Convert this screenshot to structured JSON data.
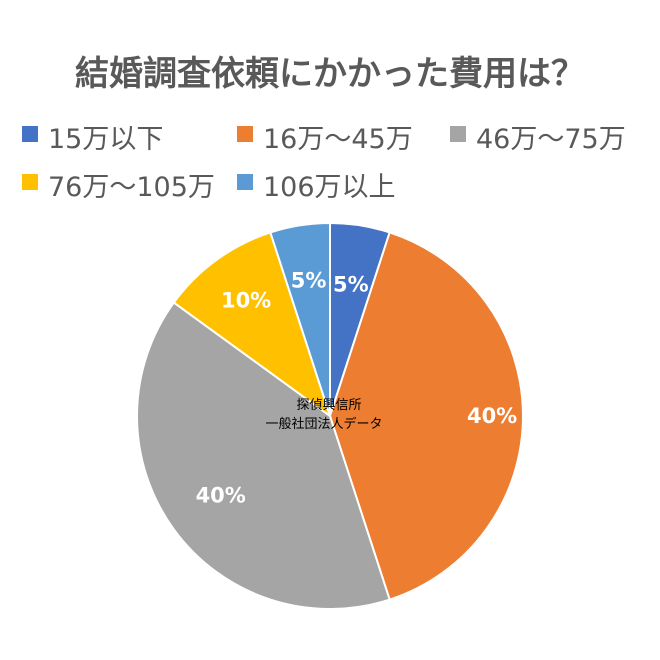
{
  "chart_data": {
    "type": "pie",
    "title": "結婚調査依頼にかかった費用は？",
    "categories": [
      "15万以下",
      "16万〜45万",
      "46万〜75万",
      "76万〜105万",
      "106万以上"
    ],
    "values": [
      5,
      40,
      40,
      10,
      5
    ],
    "value_labels": [
      "5%",
      "40%",
      "40%",
      "10%",
      "5%"
    ],
    "colors": [
      "#4472C4",
      "#ED7D31",
      "#A5A5A5",
      "#FFC000",
      "#5B9BD5"
    ],
    "legend_position": "top",
    "annotation": [
      "探偵興信所",
      "一般社団法人データ"
    ]
  }
}
